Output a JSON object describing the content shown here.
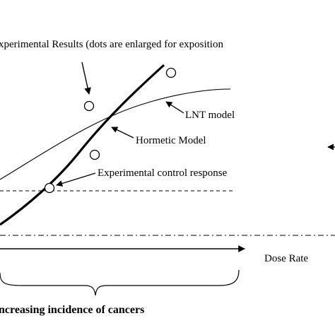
{
  "labels": {
    "experimental_results": "xperimental Results (dots are enlarged for exposition",
    "lnt_model": "LNT model",
    "hormetic_model": "Hormetic Model",
    "control_response": "Experimental control response",
    "dose_rate": "Dose Rate",
    "cancers": "ncreasing incidence of cancers"
  },
  "series": [
    {
      "name": "LNT model",
      "style": "thin solid"
    },
    {
      "name": "Hormetic Model",
      "style": "thick solid"
    }
  ],
  "reference_lines": [
    {
      "name": "Experimental control response",
      "style": "dashed"
    },
    {
      "name": "baseline",
      "style": "dash-dot"
    }
  ],
  "data_points": [
    {
      "label": "experimental result",
      "count": 4
    }
  ],
  "colors": {
    "ink": "#000000",
    "background": "#ffffff"
  }
}
